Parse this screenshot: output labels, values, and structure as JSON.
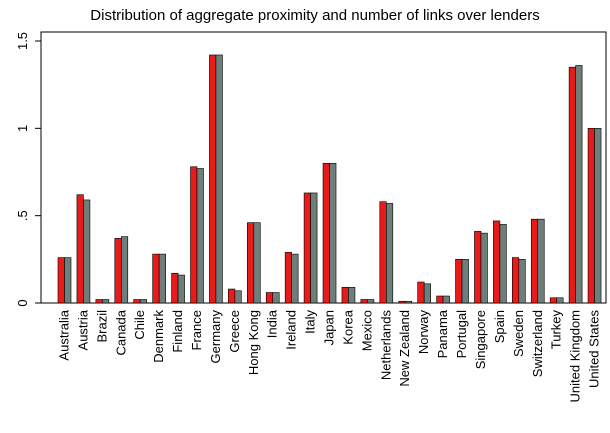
{
  "chart_data": {
    "type": "bar",
    "title": "Distribution of aggregate proximity and number of links over lenders",
    "xlabel": "",
    "ylabel": "",
    "ylim": [
      0,
      1.6
    ],
    "yticks": [
      {
        "value": 0,
        "label": "0"
      },
      {
        "value": 0.5,
        "label": ".5"
      },
      {
        "value": 1,
        "label": "1"
      },
      {
        "value": 1.5,
        "label": "1.5"
      }
    ],
    "grid": false,
    "legend": "none",
    "categories": [
      "Australia",
      "Austria",
      "Brazil",
      "Canada",
      "Chile",
      "Denmark",
      "Finland",
      "France",
      "Germany",
      "Greece",
      "Hong Kong",
      "India",
      "Ireland",
      "Italy",
      "Japan",
      "Korea",
      "Mexico",
      "Netherlands",
      "New Zealand",
      "Norway",
      "Panama",
      "Portugal",
      "Singapore",
      "Spain",
      "Sweden",
      "Switzerland",
      "Turkey",
      "United Kingdom",
      "United States"
    ],
    "series": [
      {
        "color": "#e81a1a",
        "values": [
          0.26,
          0.62,
          0.02,
          0.37,
          0.02,
          0.28,
          0.17,
          0.78,
          1.42,
          0.08,
          0.46,
          0.06,
          0.29,
          0.63,
          0.8,
          0.09,
          0.02,
          0.58,
          0.01,
          0.12,
          0.04,
          0.25,
          0.41,
          0.47,
          0.26,
          0.48,
          0.03,
          1.35,
          1.0
        ]
      },
      {
        "color": "#6e7f7b",
        "values": [
          0.26,
          0.59,
          0.02,
          0.38,
          0.02,
          0.28,
          0.16,
          0.77,
          1.42,
          0.07,
          0.46,
          0.06,
          0.28,
          0.63,
          0.8,
          0.09,
          0.02,
          0.57,
          0.01,
          0.11,
          0.04,
          0.25,
          0.4,
          0.45,
          0.25,
          0.48,
          0.03,
          1.36,
          1.0
        ]
      }
    ]
  }
}
